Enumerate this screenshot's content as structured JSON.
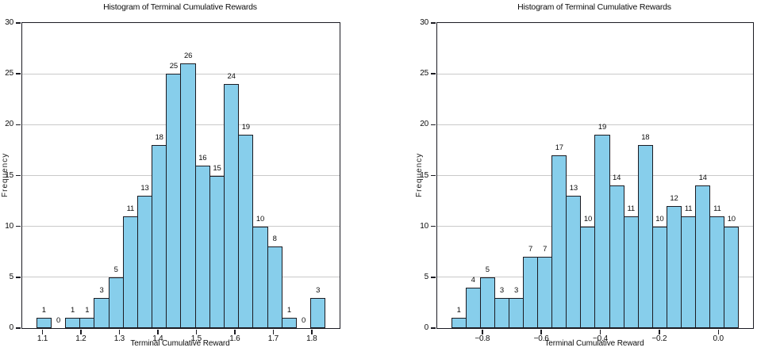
{
  "figure": {
    "background_color": "#ffffff",
    "text_color": "#0d0d0d"
  },
  "chart_data": [
    {
      "type": "bar",
      "subtype": "histogram",
      "title": "Histogram of Terminal Cumulative Rewards",
      "xlabel": "Terminal Cumulative Reward",
      "ylabel": "Frequency",
      "bin_start": 1.085,
      "bin_width": 0.0375,
      "values": [
        1,
        0,
        1,
        1,
        3,
        5,
        11,
        13,
        18,
        25,
        26,
        16,
        15,
        24,
        19,
        10,
        8,
        1,
        0,
        3
      ],
      "bar_value_labels": [
        "1",
        "0",
        "1",
        "1",
        "3",
        "5",
        "11",
        "13",
        "18",
        "25",
        "26",
        "16",
        "15",
        "24",
        "19",
        "10",
        "8",
        "1",
        "0",
        "3"
      ],
      "xlim": [
        1.0475,
        1.8725
      ],
      "ylim": [
        0,
        30
      ],
      "xticks": [
        1.1,
        1.2,
        1.3,
        1.4,
        1.5,
        1.6,
        1.7,
        1.8
      ],
      "xtick_labels": [
        "1.1",
        "1.2",
        "1.3",
        "1.4",
        "1.5",
        "1.6",
        "1.7",
        "1.8"
      ],
      "yticks": [
        0,
        5,
        10,
        15,
        20,
        25,
        30
      ],
      "ytick_labels": [
        "0",
        "5",
        "10",
        "15",
        "20",
        "25",
        "30"
      ],
      "grid": "horizontal-only",
      "legend": "none",
      "bar_color": "#87ceeb",
      "bar_edge_color": "#1b1b22",
      "grid_color": "#c9c9c9"
    },
    {
      "type": "bar",
      "subtype": "histogram",
      "title": "Histogram of Terminal Cumulative Rewards",
      "xlabel": "Terminal Cumulative Reward",
      "ylabel": "Frequency",
      "bin_start": -0.904,
      "bin_width": 0.04865,
      "values": [
        1,
        4,
        5,
        3,
        3,
        7,
        7,
        17,
        13,
        10,
        19,
        14,
        11,
        18,
        10,
        12,
        11,
        14,
        11,
        10
      ],
      "bar_value_labels": [
        "1",
        "4",
        "5",
        "3",
        "3",
        "7",
        "7",
        "17",
        "13",
        "10",
        "19",
        "14",
        "11",
        "18",
        "10",
        "12",
        "11",
        "14",
        "11",
        "10"
      ],
      "xlim": [
        -0.9527,
        0.1177
      ],
      "ylim": [
        0,
        30
      ],
      "xticks": [
        -0.8,
        -0.6,
        -0.4,
        -0.2,
        0.0
      ],
      "xtick_labels": [
        "−0.8",
        "−0.6",
        "−0.4",
        "−0.2",
        "0.0"
      ],
      "yticks": [
        0,
        5,
        10,
        15,
        20,
        25,
        30
      ],
      "ytick_labels": [
        "0",
        "5",
        "10",
        "15",
        "20",
        "25",
        "30"
      ],
      "grid": "horizontal-only",
      "legend": "none",
      "bar_color": "#87ceeb",
      "bar_edge_color": "#1b1b22",
      "grid_color": "#c9c9c9"
    }
  ]
}
